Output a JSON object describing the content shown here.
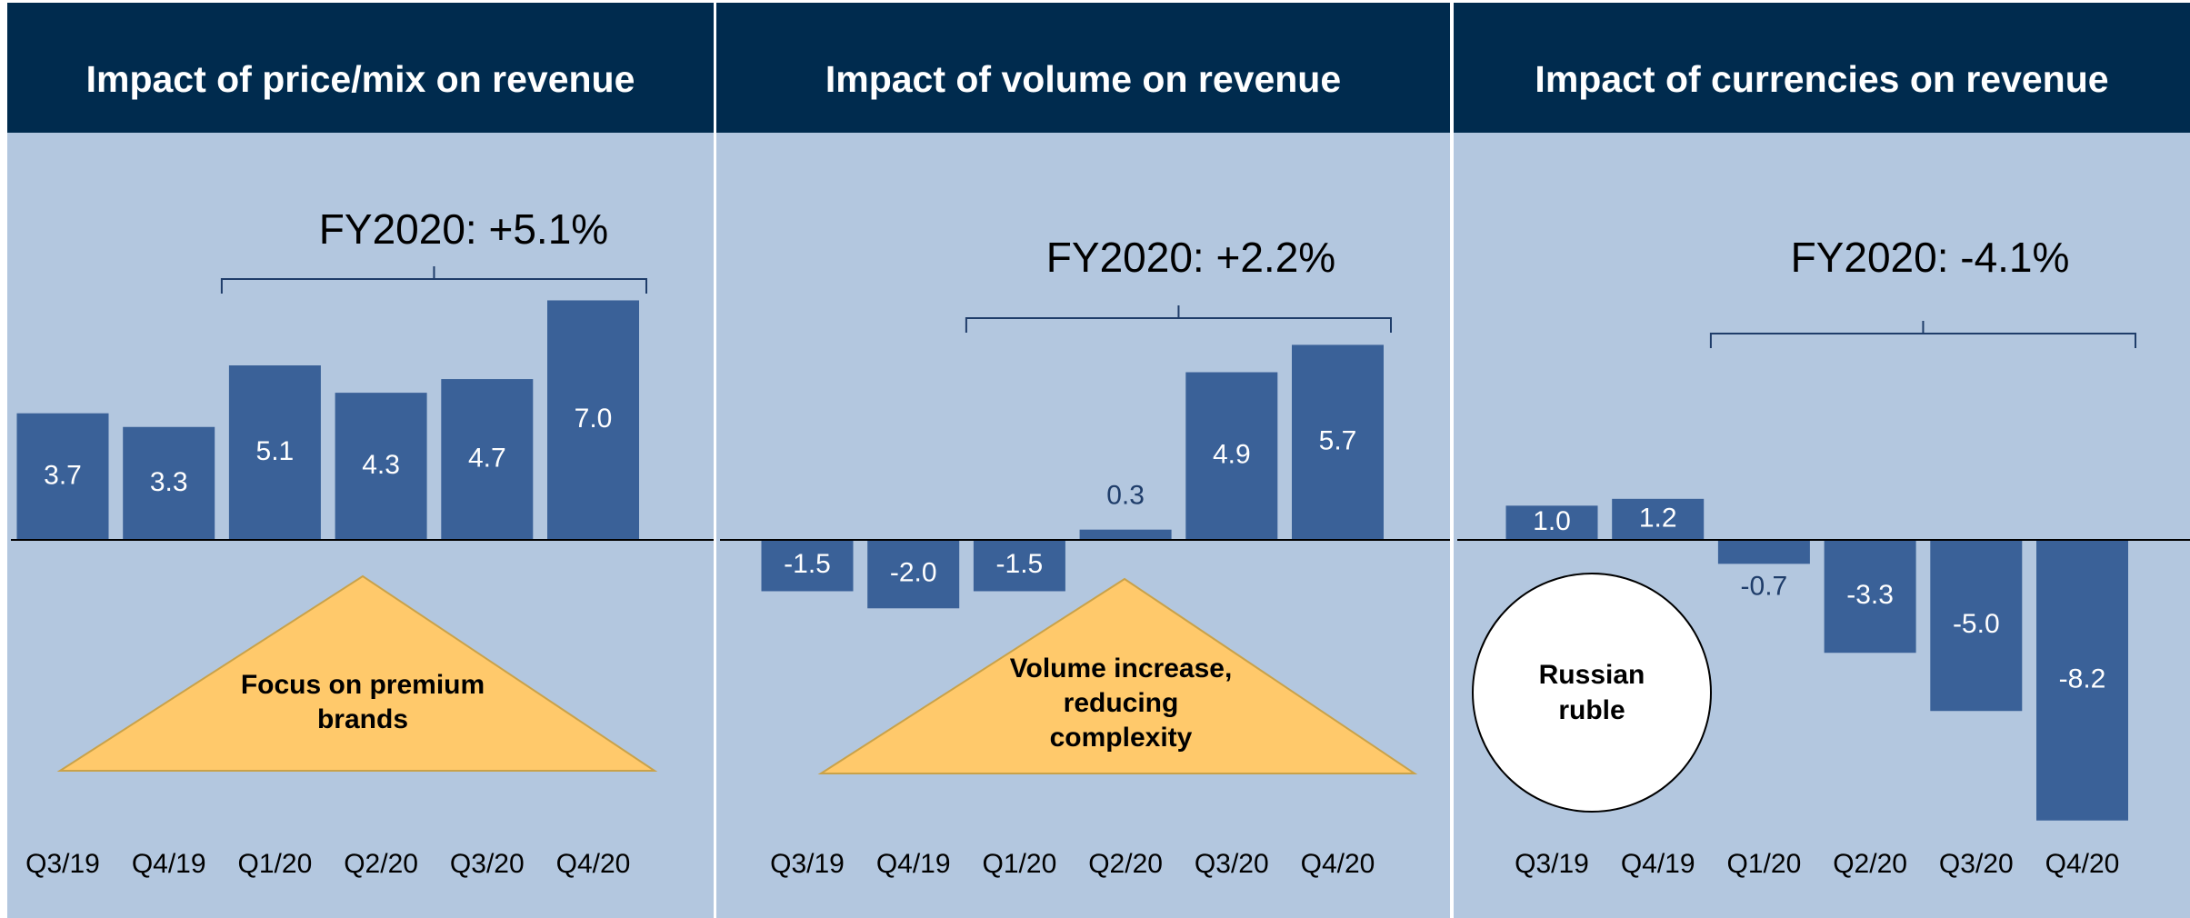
{
  "chart_data": [
    {
      "type": "bar",
      "title": "Impact of price/mix on revenue",
      "annotation": "FY2020: +5.1%",
      "callout": [
        "Focus on premium",
        "brands"
      ],
      "categories": [
        "Q3/19",
        "Q4/19",
        "Q1/20",
        "Q2/20",
        "Q3/20",
        "Q4/20"
      ],
      "values": [
        3.7,
        3.3,
        5.1,
        4.3,
        4.7,
        7.0
      ],
      "value_labels": [
        "3.7",
        "3.3",
        "5.1",
        "4.3",
        "4.7",
        "7.0"
      ],
      "color": "#3a6198",
      "ylim": [
        -11,
        11.9
      ]
    },
    {
      "type": "bar",
      "title": "Impact of volume on revenue",
      "annotation": "FY2020: +2.2%",
      "callout": [
        "Volume increase,",
        "reducing",
        "complexity"
      ],
      "categories": [
        "Q3/19",
        "Q4/19",
        "Q1/20",
        "Q2/20",
        "Q3/20",
        "Q4/20"
      ],
      "values": [
        -1.5,
        -2.0,
        -1.5,
        0.3,
        4.9,
        5.7
      ],
      "value_labels": [
        "-1.5",
        "-2.0",
        "-1.5",
        "0.3",
        "4.9",
        "5.7"
      ],
      "color": "#3a6198",
      "ylim": [
        -11,
        11.9
      ]
    },
    {
      "type": "bar",
      "title": "Impact of currencies on revenue",
      "annotation": "FY2020: -4.1%",
      "callout": [
        "Russian",
        "ruble"
      ],
      "categories": [
        "Q3/19",
        "Q4/19",
        "Q1/20",
        "Q2/20",
        "Q3/20",
        "Q4/20"
      ],
      "values": [
        1.0,
        1.2,
        -0.7,
        -3.3,
        -5.0,
        -8.2
      ],
      "value_labels": [
        "1.0",
        "1.2",
        "-0.7",
        "-3.3",
        "-5.0",
        "-8.2"
      ],
      "color": "#3a6198",
      "ylim": [
        -11,
        11.9
      ]
    }
  ]
}
